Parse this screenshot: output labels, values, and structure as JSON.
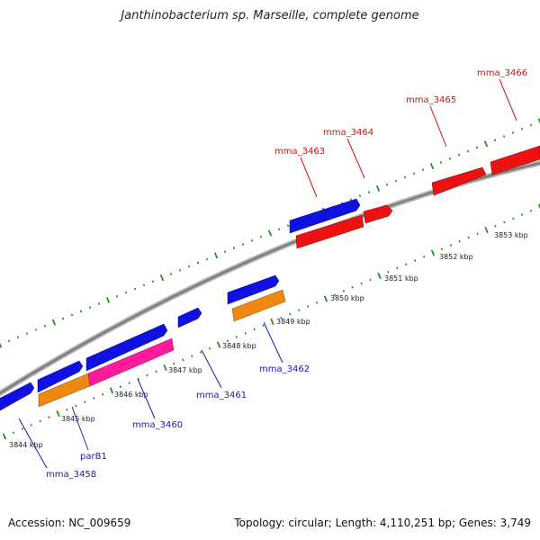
{
  "title": "Janthinobacterium sp. Marseille, complete genome",
  "footer": {
    "accession": "Accession: NC_009659",
    "summary": "Topology: circular; Length: 4,110,251 bp; Genes: 3,749"
  },
  "colors": {
    "forward_cds": "#1010e0",
    "reverse_cds": "#ee1111",
    "rrna": "#ee8811",
    "pink_feature": "#ff1b9b",
    "backbone": "#8a8a8a",
    "ticks": "#2d8a2d",
    "label_blue": "#1a1ab0",
    "label_red": "#cc1111"
  },
  "ticks": [
    "3844 kbp",
    "3845 kbp",
    "3846 kbp",
    "3847 kbp",
    "3848 kbp",
    "3849 kbp",
    "3850 kbp",
    "3851 kbp",
    "3852 kbp",
    "3853 kbp"
  ],
  "gene_labels": {
    "mma_3458": "mma_3458",
    "parB1": "parB1",
    "mma_3460": "mma_3460",
    "mma_3461": "mma_3461",
    "mma_3462": "mma_3462",
    "mma_3463": "mma_3463",
    "mma_3464": "mma_3464",
    "mma_3465": "mma_3465",
    "mma_3466": "mma_3466"
  }
}
